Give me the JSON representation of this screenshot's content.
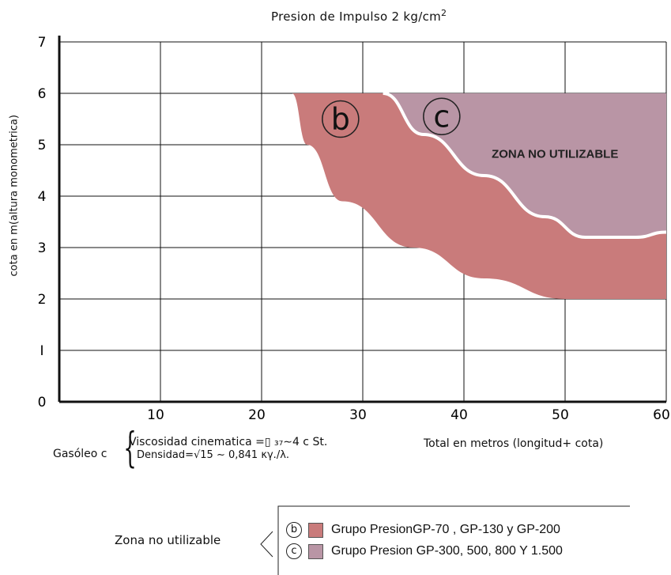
{
  "chart_data": {
    "type": "area",
    "title": "Presion de Impulso 2 kg/cm",
    "title_superscript": "2",
    "xlabel": "Total en metros (longitud+ cota)",
    "ylabel": "cota en m(altura monometrica)",
    "xlim": [
      0,
      60
    ],
    "ylim": [
      0,
      7
    ],
    "x_ticks": [
      "10",
      "20",
      "30",
      "40",
      "50",
      "60"
    ],
    "y_ticks": [
      "0",
      "I",
      "2",
      "3",
      "4",
      "5",
      "6",
      "7"
    ],
    "grid": true,
    "series": [
      {
        "name": "b",
        "color": "#c97b7b",
        "upper_y": 6,
        "boundary": [
          [
            23,
            6
          ],
          [
            24.5,
            5.0
          ],
          [
            28,
            3.9
          ],
          [
            35,
            3.0
          ],
          [
            42,
            2.4
          ],
          [
            50,
            2.0
          ],
          [
            60,
            2.0
          ]
        ]
      },
      {
        "name": "c",
        "color": "#b995a5",
        "upper_y": 6,
        "boundary": [
          [
            32,
            6
          ],
          [
            36,
            5.2
          ],
          [
            42,
            4.4
          ],
          [
            48,
            3.6
          ],
          [
            52,
            3.2
          ],
          [
            57,
            3.2
          ],
          [
            60,
            3.3
          ]
        ]
      }
    ],
    "annotations": [
      {
        "text": "ZONA NO UTILIZABLE",
        "x": 49,
        "y": 4.75
      }
    ]
  },
  "fuel": {
    "name": "Gasóleo c",
    "viscosity": "Viscosidad  cinematica   =▯   ₃₇∼4 c St.",
    "density": "Densidad=√15 ∼ 0,841 κγ./λ."
  },
  "legend": {
    "title": "Zona no utilizable",
    "items": [
      {
        "letter": "b",
        "color": "#c97b7b",
        "label": "Grupo PresionGP-70 , GP-130 y GP-200"
      },
      {
        "letter": "c",
        "color": "#b995a5",
        "label": "Grupo Presion GP-300, 500, 800 Y 1.500"
      }
    ]
  }
}
